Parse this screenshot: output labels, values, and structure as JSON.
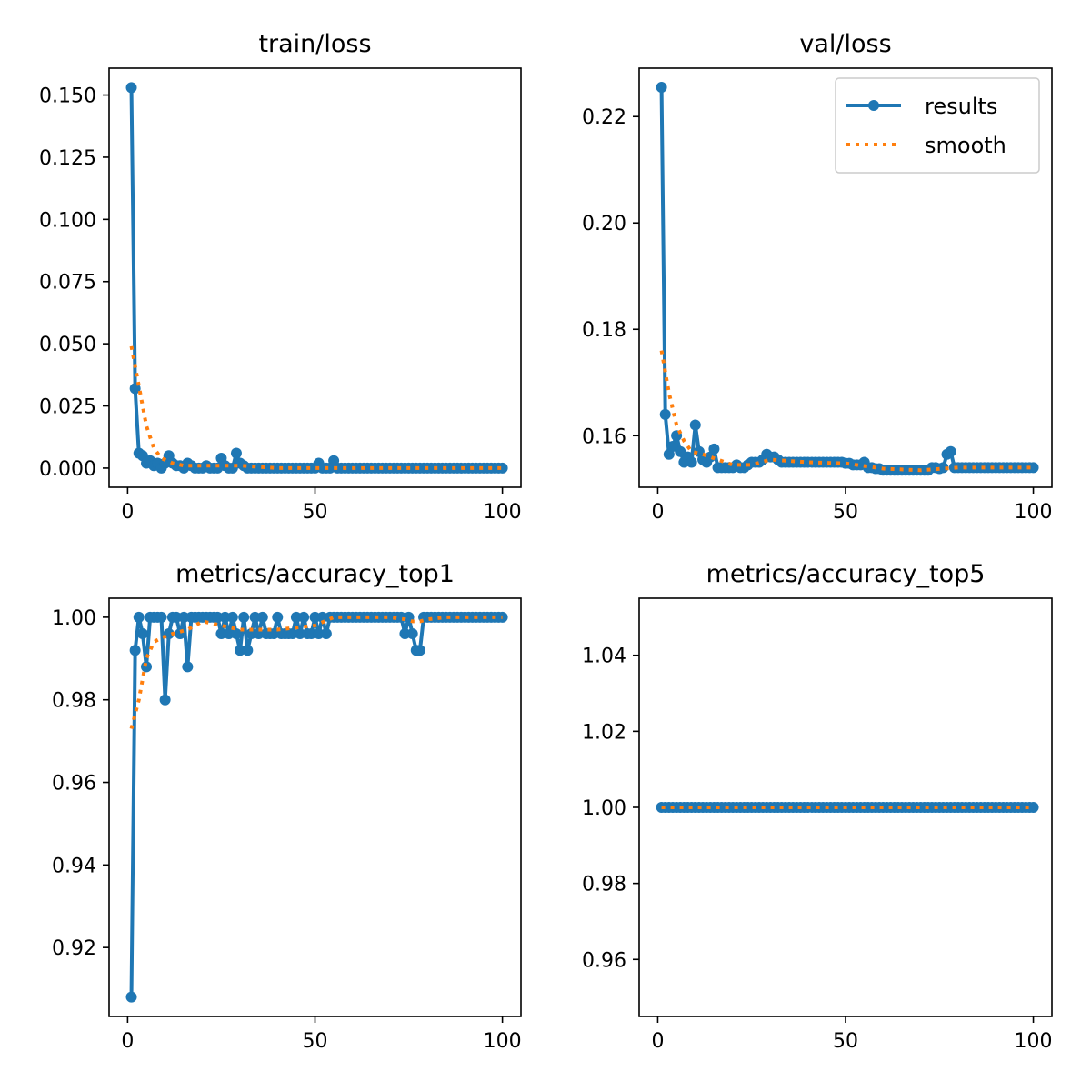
{
  "colors": {
    "results": "#1f77b4",
    "smooth": "#ff7f0e",
    "axis": "#000000"
  },
  "legend": {
    "results_label": "results",
    "smooth_label": "smooth",
    "placement": "top-right",
    "panel": 1
  },
  "chart_data": [
    {
      "type": "line",
      "title": "train/loss",
      "xlabel": "",
      "ylabel": "",
      "xlim": [
        -4.95,
        104.95
      ],
      "ylim": [
        -0.0077,
        0.1608
      ],
      "xticks": [
        0,
        50,
        100
      ],
      "yticks": [
        0.0,
        0.025,
        0.05,
        0.075,
        0.1,
        0.125,
        0.15
      ],
      "ytick_labels": [
        "0.000",
        "0.025",
        "0.050",
        "0.075",
        "0.100",
        "0.125",
        "0.150"
      ],
      "series": [
        {
          "name": "results",
          "x": [
            1,
            2,
            3,
            4,
            5,
            6,
            7,
            8,
            9,
            10,
            11,
            12,
            13,
            14,
            15,
            16,
            17,
            18,
            19,
            20,
            21,
            22,
            23,
            24,
            25,
            26,
            27,
            28,
            29,
            30,
            31,
            32,
            33,
            34,
            35,
            36,
            37,
            38,
            39,
            40,
            41,
            42,
            43,
            44,
            45,
            46,
            47,
            48,
            49,
            50,
            51,
            52,
            53,
            54,
            55,
            56,
            57,
            58,
            59,
            60,
            61,
            62,
            63,
            64,
            65,
            66,
            67,
            68,
            69,
            70,
            71,
            72,
            73,
            74,
            75,
            76,
            77,
            78,
            79,
            80,
            81,
            82,
            83,
            84,
            85,
            86,
            87,
            88,
            89,
            90,
            91,
            92,
            93,
            94,
            95,
            96,
            97,
            98,
            99,
            100
          ],
          "y": [
            0.153,
            0.032,
            0.006,
            0.005,
            0.002,
            0.003,
            0.001,
            0.002,
            0.0,
            0.002,
            0.005,
            0.002,
            0.001,
            0.001,
            0.0,
            0.002,
            0.001,
            0.0,
            0.0,
            0.0,
            0.001,
            0.0,
            0.0,
            0.0,
            0.004,
            0.001,
            0.0,
            0.0,
            0.006,
            0.002,
            0.001,
            0.0,
            0.0,
            0.0,
            0.0,
            0.0,
            0.0,
            0.0,
            0.0,
            0.0,
            0.0,
            0.0,
            0.0,
            0.0,
            0.0,
            0.0,
            0.0,
            0.0,
            0.0,
            0.0,
            0.002,
            0.0,
            0.0,
            0.0,
            0.003,
            0.0,
            0.0,
            0.0,
            0.0,
            0.0,
            0.0,
            0.0,
            0.0,
            0.0,
            0.0,
            0.0,
            0.0,
            0.0,
            0.0,
            0.0,
            0.0,
            0.0,
            0.0,
            0.0,
            0.0,
            0.0,
            0.0,
            0.0,
            0.0,
            0.0,
            0.0,
            0.0,
            0.0,
            0.0,
            0.0,
            0.0,
            0.0,
            0.0,
            0.0,
            0.0,
            0.0,
            0.0,
            0.0,
            0.0,
            0.0,
            0.0,
            0.0,
            0.0,
            0.0,
            0.0
          ]
        },
        {
          "name": "smooth",
          "x": [
            1,
            3,
            5,
            7,
            9,
            12,
            15,
            20,
            30,
            40,
            50,
            60,
            70,
            80,
            90,
            100
          ],
          "y": [
            0.049,
            0.033,
            0.017,
            0.008,
            0.004,
            0.002,
            0.001,
            0.001,
            0.001,
            0.0,
            0.0,
            0.0,
            0.0,
            0.0,
            0.0,
            0.0
          ]
        }
      ]
    },
    {
      "type": "line",
      "title": "val/loss",
      "xlabel": "",
      "ylabel": "",
      "xlim": [
        -4.95,
        104.95
      ],
      "ylim": [
        0.1503,
        0.2291
      ],
      "xticks": [
        0,
        50,
        100
      ],
      "yticks": [
        0.16,
        0.18,
        0.2,
        0.22
      ],
      "ytick_labels": [
        "0.16",
        "0.18",
        "0.20",
        "0.22"
      ],
      "series": [
        {
          "name": "results",
          "x": [
            1,
            2,
            3,
            4,
            5,
            6,
            7,
            8,
            9,
            10,
            11,
            12,
            13,
            14,
            15,
            16,
            17,
            18,
            19,
            20,
            21,
            22,
            23,
            24,
            25,
            26,
            27,
            28,
            29,
            30,
            31,
            32,
            33,
            34,
            35,
            36,
            37,
            38,
            39,
            40,
            41,
            42,
            43,
            44,
            45,
            46,
            47,
            48,
            49,
            50,
            51,
            52,
            53,
            54,
            55,
            56,
            57,
            58,
            59,
            60,
            61,
            62,
            63,
            64,
            65,
            66,
            67,
            68,
            69,
            70,
            71,
            72,
            73,
            74,
            75,
            76,
            77,
            78,
            79,
            80,
            81,
            82,
            83,
            84,
            85,
            86,
            87,
            88,
            89,
            90,
            91,
            92,
            93,
            94,
            95,
            96,
            97,
            98,
            99,
            100
          ],
          "y": [
            0.2255,
            0.164,
            0.1565,
            0.158,
            0.16,
            0.157,
            0.155,
            0.156,
            0.155,
            0.162,
            0.157,
            0.1555,
            0.155,
            0.156,
            0.1575,
            0.154,
            0.154,
            0.154,
            0.154,
            0.154,
            0.1545,
            0.154,
            0.154,
            0.1545,
            0.155,
            0.155,
            0.155,
            0.1555,
            0.1565,
            0.156,
            0.156,
            0.1555,
            0.155,
            0.155,
            0.155,
            0.155,
            0.155,
            0.155,
            0.155,
            0.155,
            0.155,
            0.155,
            0.155,
            0.155,
            0.155,
            0.155,
            0.155,
            0.155,
            0.155,
            0.1548,
            0.1548,
            0.1545,
            0.1545,
            0.1545,
            0.155,
            0.154,
            0.154,
            0.1538,
            0.1538,
            0.1535,
            0.1535,
            0.1535,
            0.1535,
            0.1535,
            0.1535,
            0.1535,
            0.1535,
            0.1535,
            0.1535,
            0.1535,
            0.1535,
            0.1535,
            0.154,
            0.154,
            0.1538,
            0.154,
            0.1565,
            0.157,
            0.154,
            0.154,
            0.154,
            0.154,
            0.154,
            0.154,
            0.154,
            0.154,
            0.154,
            0.154,
            0.154,
            0.154,
            0.154,
            0.154,
            0.154,
            0.154,
            0.154,
            0.154,
            0.154,
            0.154,
            0.154,
            0.154
          ]
        },
        {
          "name": "smooth",
          "x": [
            1,
            3,
            5,
            7,
            9,
            12,
            16,
            20,
            25,
            30,
            40,
            50,
            60,
            70,
            80,
            90,
            100
          ],
          "y": [
            0.176,
            0.168,
            0.162,
            0.159,
            0.157,
            0.1565,
            0.1555,
            0.1545,
            0.1545,
            0.1555,
            0.155,
            0.1548,
            0.1538,
            0.1535,
            0.154,
            0.154,
            0.154
          ]
        }
      ]
    },
    {
      "type": "line",
      "title": "metrics/accuracy_top1",
      "xlabel": "",
      "ylabel": "",
      "xlim": [
        -4.95,
        104.95
      ],
      "ylim": [
        0.9033,
        1.0046
      ],
      "xticks": [
        0,
        50,
        100
      ],
      "yticks": [
        0.92,
        0.94,
        0.96,
        0.98,
        1.0
      ],
      "ytick_labels": [
        "0.92",
        "0.94",
        "0.96",
        "0.98",
        "1.00"
      ],
      "series": [
        {
          "name": "results",
          "x": [
            1,
            2,
            3,
            4,
            5,
            6,
            7,
            8,
            9,
            10,
            11,
            12,
            13,
            14,
            15,
            16,
            17,
            18,
            19,
            20,
            21,
            22,
            23,
            24,
            25,
            26,
            27,
            28,
            29,
            30,
            31,
            32,
            33,
            34,
            35,
            36,
            37,
            38,
            39,
            40,
            41,
            42,
            43,
            44,
            45,
            46,
            47,
            48,
            49,
            50,
            51,
            52,
            53,
            54,
            55,
            56,
            57,
            58,
            59,
            60,
            61,
            62,
            63,
            64,
            65,
            66,
            67,
            68,
            69,
            70,
            71,
            72,
            73,
            74,
            75,
            76,
            77,
            78,
            79,
            80,
            81,
            82,
            83,
            84,
            85,
            86,
            87,
            88,
            89,
            90,
            91,
            92,
            93,
            94,
            95,
            96,
            97,
            98,
            99,
            100
          ],
          "y": [
            0.908,
            0.992,
            1.0,
            0.996,
            0.988,
            1.0,
            1.0,
            1.0,
            1.0,
            0.98,
            0.996,
            1.0,
            1.0,
            0.996,
            1.0,
            0.988,
            1.0,
            1.0,
            1.0,
            1.0,
            1.0,
            1.0,
            1.0,
            1.0,
            0.996,
            1.0,
            0.996,
            1.0,
            0.996,
            0.992,
            1.0,
            0.992,
            0.996,
            1.0,
            0.996,
            1.0,
            0.996,
            0.996,
            0.996,
            1.0,
            0.996,
            0.996,
            0.996,
            0.996,
            1.0,
            0.996,
            1.0,
            0.996,
            0.996,
            1.0,
            0.996,
            1.0,
            0.996,
            1.0,
            1.0,
            1.0,
            1.0,
            1.0,
            1.0,
            1.0,
            1.0,
            1.0,
            1.0,
            1.0,
            1.0,
            1.0,
            1.0,
            1.0,
            1.0,
            1.0,
            1.0,
            1.0,
            1.0,
            0.996,
            1.0,
            0.996,
            0.992,
            0.992,
            1.0,
            1.0,
            1.0,
            1.0,
            1.0,
            1.0,
            1.0,
            1.0,
            1.0,
            1.0,
            1.0,
            1.0,
            1.0,
            1.0,
            1.0,
            1.0,
            1.0,
            1.0,
            1.0,
            1.0,
            1.0,
            1.0
          ]
        },
        {
          "name": "smooth",
          "x": [
            1,
            3,
            5,
            7,
            9,
            12,
            16,
            20,
            25,
            30,
            40,
            50,
            55,
            60,
            70,
            74,
            76,
            78,
            80,
            85,
            90,
            100
          ],
          "y": [
            0.973,
            0.98,
            0.99,
            0.994,
            0.995,
            0.996,
            0.997,
            0.999,
            0.998,
            0.997,
            0.997,
            0.998,
            1.0,
            1.0,
            1.0,
            0.9995,
            0.999,
            0.999,
            0.9995,
            1.0,
            1.0,
            1.0
          ]
        }
      ]
    },
    {
      "type": "line",
      "title": "metrics/accuracy_top5",
      "xlabel": "",
      "ylabel": "",
      "xlim": [
        -4.95,
        104.95
      ],
      "ylim": [
        0.945,
        1.055
      ],
      "xticks": [
        0,
        50,
        100
      ],
      "yticks": [
        0.96,
        0.98,
        1.0,
        1.02,
        1.04
      ],
      "ytick_labels": [
        "0.96",
        "0.98",
        "1.00",
        "1.02",
        "1.04"
      ],
      "series": [
        {
          "name": "results",
          "x": [
            1,
            2,
            3,
            4,
            5,
            6,
            7,
            8,
            9,
            10,
            11,
            12,
            13,
            14,
            15,
            16,
            17,
            18,
            19,
            20,
            21,
            22,
            23,
            24,
            25,
            26,
            27,
            28,
            29,
            30,
            31,
            32,
            33,
            34,
            35,
            36,
            37,
            38,
            39,
            40,
            41,
            42,
            43,
            44,
            45,
            46,
            47,
            48,
            49,
            50,
            51,
            52,
            53,
            54,
            55,
            56,
            57,
            58,
            59,
            60,
            61,
            62,
            63,
            64,
            65,
            66,
            67,
            68,
            69,
            70,
            71,
            72,
            73,
            74,
            75,
            76,
            77,
            78,
            79,
            80,
            81,
            82,
            83,
            84,
            85,
            86,
            87,
            88,
            89,
            90,
            91,
            92,
            93,
            94,
            95,
            96,
            97,
            98,
            99,
            100
          ],
          "y": [
            1.0,
            1.0,
            1.0,
            1.0,
            1.0,
            1.0,
            1.0,
            1.0,
            1.0,
            1.0,
            1.0,
            1.0,
            1.0,
            1.0,
            1.0,
            1.0,
            1.0,
            1.0,
            1.0,
            1.0,
            1.0,
            1.0,
            1.0,
            1.0,
            1.0,
            1.0,
            1.0,
            1.0,
            1.0,
            1.0,
            1.0,
            1.0,
            1.0,
            1.0,
            1.0,
            1.0,
            1.0,
            1.0,
            1.0,
            1.0,
            1.0,
            1.0,
            1.0,
            1.0,
            1.0,
            1.0,
            1.0,
            1.0,
            1.0,
            1.0,
            1.0,
            1.0,
            1.0,
            1.0,
            1.0,
            1.0,
            1.0,
            1.0,
            1.0,
            1.0,
            1.0,
            1.0,
            1.0,
            1.0,
            1.0,
            1.0,
            1.0,
            1.0,
            1.0,
            1.0,
            1.0,
            1.0,
            1.0,
            1.0,
            1.0,
            1.0,
            1.0,
            1.0,
            1.0,
            1.0,
            1.0,
            1.0,
            1.0,
            1.0,
            1.0,
            1.0,
            1.0,
            1.0,
            1.0,
            1.0,
            1.0,
            1.0,
            1.0,
            1.0,
            1.0,
            1.0,
            1.0,
            1.0,
            1.0,
            1.0
          ]
        },
        {
          "name": "smooth",
          "x": [
            1,
            100
          ],
          "y": [
            1.0,
            1.0
          ]
        }
      ]
    }
  ]
}
